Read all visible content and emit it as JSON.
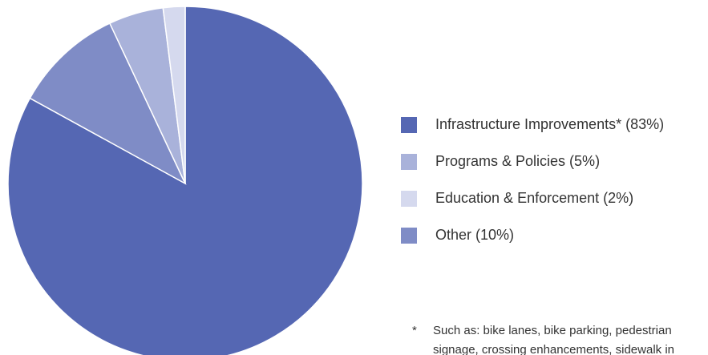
{
  "chart_data": {
    "type": "pie",
    "categories": [
      "Infrastructure Improvements* (83%)",
      "Other (10%)",
      "Programs & Policies (5%)",
      "Education & Enforcement (2%)"
    ],
    "values": [
      83,
      10,
      5,
      2
    ],
    "colors": [
      "#5567b3",
      "#7f8cc6",
      "#a9b2da",
      "#d5d9ee"
    ],
    "legend": "right",
    "footnote": {
      "marker": "*",
      "lines": [
        "Such as: bike lanes, bike parking, pedestrian",
        "signage, crossing enhancements, sidewalk in"
      ]
    }
  }
}
